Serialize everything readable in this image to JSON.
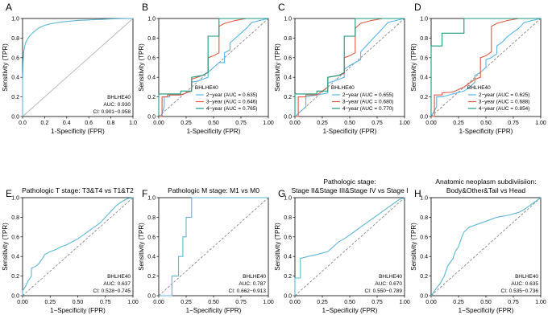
{
  "chart_data": [
    {
      "panel": "A",
      "type": "line",
      "title": "",
      "legend_title": "",
      "xlabel": "1-Specificity (FPR)",
      "ylabel": "Sensitivity (TPR)",
      "xlim": [
        0,
        1
      ],
      "ylim": [
        0,
        1
      ],
      "xticks": [
        "0.0",
        "0.2",
        "0.4",
        "0.6",
        "0.8",
        "1.0"
      ],
      "yticks": [
        "0.0",
        "0.2",
        "0.4",
        "0.6",
        "0.8",
        "1.0"
      ],
      "diagonal": "solid",
      "legend_position": "bottom-right",
      "annotations": [
        "BHLHE40",
        "AUC: 0.930",
        "CI: 0.901−0.958"
      ],
      "series": [
        {
          "name": "BHLHE40",
          "color": "#5fb8d4",
          "x": [
            0,
            0,
            0.005,
            0.01,
            0.02,
            0.03,
            0.05,
            0.07,
            0.1,
            0.13,
            0.16,
            0.2,
            0.25,
            0.3,
            0.35,
            0.4,
            0.5,
            0.6,
            0.7,
            0.8,
            0.9,
            1.0
          ],
          "y": [
            0,
            0.35,
            0.55,
            0.66,
            0.72,
            0.76,
            0.8,
            0.83,
            0.86,
            0.89,
            0.91,
            0.93,
            0.945,
            0.955,
            0.965,
            0.97,
            0.98,
            0.985,
            0.99,
            0.995,
            0.998,
            1.0
          ]
        }
      ]
    },
    {
      "panel": "B",
      "type": "line",
      "title": "",
      "legend_title": "BHLHE40",
      "xlabel": "1-Specificity (FPR)",
      "ylabel": "Sensitivity (TPR)",
      "xlim": [
        0,
        1
      ],
      "ylim": [
        0,
        1
      ],
      "xticks": [
        "0.00",
        "0.25",
        "0.50",
        "0.75",
        "1.00"
      ],
      "yticks": [
        "0.0",
        "0.2",
        "0.4",
        "0.6",
        "0.8",
        "1.0"
      ],
      "diagonal": "dashed",
      "legend_position": "bottom-right",
      "annotations": [],
      "series": [
        {
          "name": "2−year (AUC = 0.635)",
          "color": "#56b4e9",
          "x": [
            0,
            0.02,
            0.05,
            0.05,
            0.1,
            0.1,
            0.2,
            0.25,
            0.3,
            0.3,
            0.35,
            0.4,
            0.45,
            0.45,
            0.5,
            0.55,
            0.6,
            0.6,
            0.65,
            0.65,
            0.7,
            0.75,
            0.8,
            0.85,
            1.0
          ],
          "y": [
            0,
            0,
            0.1,
            0.2,
            0.2,
            0.22,
            0.22,
            0.24,
            0.26,
            0.35,
            0.36,
            0.38,
            0.4,
            0.45,
            0.5,
            0.55,
            0.55,
            0.65,
            0.68,
            0.75,
            0.8,
            0.85,
            0.9,
            0.96,
            1.0
          ]
        },
        {
          "name": "3−year (AUC = 0.646)",
          "color": "#e05a44",
          "x": [
            0,
            0.03,
            0.03,
            0.08,
            0.08,
            0.2,
            0.3,
            0.3,
            0.35,
            0.4,
            0.45,
            0.45,
            0.5,
            0.55,
            0.55,
            0.6,
            0.7,
            0.8,
            0.9,
            1.0
          ],
          "y": [
            0,
            0,
            0.2,
            0.2,
            0.22,
            0.22,
            0.26,
            0.38,
            0.4,
            0.42,
            0.45,
            0.6,
            0.62,
            0.65,
            0.92,
            0.95,
            0.98,
            1.0,
            1.0,
            1.0
          ]
        },
        {
          "name": "4−year (AUC = 0.765)",
          "color": "#1a9a7f",
          "x": [
            0,
            0,
            0.1,
            0.2,
            0.2,
            0.3,
            0.3,
            0.4,
            0.45,
            0.45,
            0.55,
            0.55,
            1.0
          ],
          "y": [
            0,
            0.23,
            0.23,
            0.23,
            0.26,
            0.26,
            0.4,
            0.42,
            0.45,
            0.82,
            0.82,
            1.0,
            1.0
          ]
        }
      ]
    },
    {
      "panel": "C",
      "type": "line",
      "title": "",
      "legend_title": "BHLHE40",
      "xlabel": "1-Specificity (FPR)",
      "ylabel": "Sensitivity (TPR)",
      "xlim": [
        0,
        1
      ],
      "ylim": [
        0,
        1
      ],
      "xticks": [
        "0.00",
        "0.25",
        "0.50",
        "0.75",
        "1.00"
      ],
      "yticks": [
        "0.0",
        "0.2",
        "0.4",
        "0.6",
        "0.8",
        "1.0"
      ],
      "diagonal": "dashed",
      "legend_position": "bottom-right",
      "annotations": [],
      "series": [
        {
          "name": "2−year (AUC = 0.655)",
          "color": "#56b4e9",
          "x": [
            0,
            0.05,
            0.1,
            0.1,
            0.2,
            0.3,
            0.3,
            0.35,
            0.4,
            0.45,
            0.45,
            0.5,
            0.55,
            0.6,
            0.6,
            0.65,
            0.7,
            0.75,
            0.8,
            0.85,
            1.0
          ],
          "y": [
            0,
            0.05,
            0.1,
            0.2,
            0.22,
            0.24,
            0.34,
            0.36,
            0.38,
            0.4,
            0.48,
            0.52,
            0.55,
            0.58,
            0.66,
            0.72,
            0.78,
            0.84,
            0.9,
            0.96,
            1.0
          ]
        },
        {
          "name": "3−year (AUC = 0.680)",
          "color": "#e05a44",
          "x": [
            0,
            0.03,
            0.03,
            0.1,
            0.1,
            0.2,
            0.3,
            0.3,
            0.4,
            0.45,
            0.45,
            0.5,
            0.55,
            0.55,
            0.6,
            0.7,
            0.8,
            1.0
          ],
          "y": [
            0,
            0,
            0.2,
            0.2,
            0.22,
            0.22,
            0.3,
            0.4,
            0.42,
            0.44,
            0.6,
            0.62,
            0.65,
            0.9,
            0.95,
            0.98,
            1.0,
            1.0
          ]
        },
        {
          "name": "4−year (AUC = 0.770)",
          "color": "#1a9a7f",
          "x": [
            0,
            0,
            0.1,
            0.2,
            0.2,
            0.3,
            0.3,
            0.4,
            0.45,
            0.45,
            0.55,
            0.55,
            1.0
          ],
          "y": [
            0,
            0.23,
            0.23,
            0.23,
            0.26,
            0.26,
            0.4,
            0.42,
            0.45,
            0.82,
            0.82,
            1.0,
            1.0
          ]
        }
      ]
    },
    {
      "panel": "D",
      "type": "line",
      "title": "",
      "legend_title": "BHLHE40",
      "xlabel": "1-Specificity (FPR)",
      "ylabel": "Sensitivity (TPR)",
      "xlim": [
        0,
        1
      ],
      "ylim": [
        0,
        1
      ],
      "xticks": [
        "0.00",
        "0.25",
        "0.50",
        "0.75",
        "1.00"
      ],
      "yticks": [
        "0.0",
        "0.2",
        "0.4",
        "0.6",
        "0.8",
        "1.0"
      ],
      "diagonal": "dashed",
      "legend_position": "bottom-right",
      "annotations": [],
      "series": [
        {
          "name": "2−year (AUC = 0.625)",
          "color": "#56b4e9",
          "x": [
            0,
            0.05,
            0.05,
            0.1,
            0.2,
            0.3,
            0.35,
            0.4,
            0.4,
            0.45,
            0.5,
            0.5,
            0.55,
            0.6,
            0.6,
            0.65,
            0.7,
            0.75,
            0.8,
            0.85,
            1.0
          ],
          "y": [
            0,
            0.1,
            0.2,
            0.2,
            0.23,
            0.26,
            0.3,
            0.35,
            0.42,
            0.45,
            0.5,
            0.58,
            0.6,
            0.64,
            0.72,
            0.76,
            0.82,
            0.86,
            0.9,
            0.96,
            1.0
          ]
        },
        {
          "name": "3−year (AUC = 0.688)",
          "color": "#e05a44",
          "x": [
            0,
            0.03,
            0.03,
            0.1,
            0.1,
            0.2,
            0.3,
            0.35,
            0.4,
            0.45,
            0.45,
            0.5,
            0.55,
            0.55,
            0.6,
            0.7,
            0.8,
            1.0
          ],
          "y": [
            0,
            0,
            0.22,
            0.22,
            0.24,
            0.25,
            0.3,
            0.34,
            0.38,
            0.4,
            0.6,
            0.62,
            0.66,
            0.92,
            0.95,
            0.98,
            1.0,
            1.0
          ]
        },
        {
          "name": "4−year (AUC = 0.854)",
          "color": "#1a9a7f",
          "x": [
            0,
            0,
            0.1,
            0.1,
            0.3,
            0.3,
            0.5,
            1.0
          ],
          "y": [
            0,
            0.72,
            0.72,
            0.85,
            0.85,
            1.0,
            1.0,
            1.0
          ]
        }
      ]
    },
    {
      "panel": "E",
      "type": "line",
      "title": "Pathologic T stage: T3&T4 vs T1&T2",
      "legend_title": "",
      "xlabel": "1−Specificity (FPR)",
      "ylabel": "Sensitivity (TPR)",
      "xlim": [
        0,
        1
      ],
      "ylim": [
        0,
        1
      ],
      "xticks": [
        "0.00",
        "0.25",
        "0.50",
        "0.75",
        "1.00"
      ],
      "yticks": [
        "0.0",
        "0.2",
        "0.4",
        "0.6",
        "0.8",
        "1.0"
      ],
      "diagonal": "dashed",
      "legend_position": "bottom-right",
      "annotations": [
        "BHLHE40",
        "AUC: 0.637",
        "CI: 0.528−0.745"
      ],
      "series": [
        {
          "name": "BHLHE40",
          "color": "#5fb8d4",
          "x": [
            0,
            0,
            0.03,
            0.05,
            0.08,
            0.08,
            0.12,
            0.15,
            0.18,
            0.2,
            0.25,
            0.3,
            0.35,
            0.4,
            0.45,
            0.5,
            0.55,
            0.6,
            0.65,
            0.7,
            0.75,
            0.8,
            0.85,
            0.9,
            0.95,
            1.0
          ],
          "y": [
            0,
            0.05,
            0.1,
            0.15,
            0.2,
            0.28,
            0.3,
            0.33,
            0.38,
            0.42,
            0.45,
            0.47,
            0.5,
            0.52,
            0.55,
            0.58,
            0.62,
            0.66,
            0.7,
            0.74,
            0.8,
            0.86,
            0.92,
            0.96,
            0.99,
            1.0
          ]
        }
      ]
    },
    {
      "panel": "F",
      "type": "line",
      "title": "Pathologic M stage: M1 vs M0",
      "legend_title": "",
      "xlabel": "1−Specificity (FPR)",
      "ylabel": "Sensitivity (TPR)",
      "xlim": [
        0,
        1
      ],
      "ylim": [
        0,
        1
      ],
      "xticks": [
        "0.00",
        "0.25",
        "0.50",
        "0.75",
        "1.00"
      ],
      "yticks": [
        "0.0",
        "0.2",
        "0.4",
        "0.6",
        "0.8",
        "1.0"
      ],
      "diagonal": "dashed",
      "legend_position": "bottom-right",
      "annotations": [
        "BHLHE40",
        "AUC: 0.787",
        "CI: 0.662−0.913"
      ],
      "series": [
        {
          "name": "BHLHE40",
          "color": "#5fb8d4",
          "x": [
            0,
            0.12,
            0.12,
            0.18,
            0.18,
            0.22,
            0.22,
            0.25,
            0.25,
            0.3,
            0.3,
            0.35,
            0.35,
            1.0
          ],
          "y": [
            0,
            0,
            0.2,
            0.2,
            0.4,
            0.4,
            0.6,
            0.6,
            0.8,
            0.8,
            1.0,
            1.0,
            1.0,
            1.0
          ]
        }
      ]
    },
    {
      "panel": "G",
      "type": "line",
      "title": "Pathologic stage:\nStage II&Stage III&Stage IV vs Stage I",
      "legend_title": "",
      "xlabel": "1−Specificity (FPR)",
      "ylabel": "Sensitivity (TPR)",
      "xlim": [
        0,
        1
      ],
      "ylim": [
        0,
        1
      ],
      "xticks": [
        "0.00",
        "0.25",
        "0.50",
        "0.75",
        "1.00"
      ],
      "yticks": [
        "0.0",
        "0.2",
        "0.4",
        "0.6",
        "0.8",
        "1.0"
      ],
      "diagonal": "dashed",
      "legend_position": "bottom-right",
      "annotations": [
        "BHLHE40",
        "AUC: 0.670",
        "CI: 0.550−0.789"
      ],
      "series": [
        {
          "name": "BHLHE40",
          "color": "#5fb8d4",
          "x": [
            0,
            0,
            0.05,
            0.05,
            0.12,
            0.2,
            0.3,
            0.35,
            0.4,
            0.45,
            0.5,
            0.55,
            0.6,
            0.65,
            0.7,
            0.75,
            0.8,
            0.85,
            0.9,
            0.95,
            1.0
          ],
          "y": [
            0,
            0.18,
            0.18,
            0.38,
            0.4,
            0.42,
            0.45,
            0.5,
            0.55,
            0.58,
            0.62,
            0.66,
            0.7,
            0.74,
            0.78,
            0.82,
            0.86,
            0.9,
            0.94,
            0.98,
            1.0
          ]
        }
      ]
    },
    {
      "panel": "H",
      "type": "line",
      "title": "Anatomic neoplasm subdiviisiion:\nBody&Other&Tail vs Head",
      "legend_title": "",
      "xlabel": "1−Specificity (FPR)",
      "ylabel": "Sensitivity (TPR)",
      "xlim": [
        0,
        1
      ],
      "ylim": [
        0,
        1
      ],
      "xticks": [
        "0.00",
        "0.25",
        "0.50",
        "0.75",
        "1.00"
      ],
      "yticks": [
        "0.0",
        "0.2",
        "0.4",
        "0.6",
        "0.8",
        "1.0"
      ],
      "diagonal": "dashed",
      "legend_position": "bottom-right",
      "annotations": [
        "BHLHE40",
        "AUC: 0.635",
        "CI: 0.535−0.736"
      ],
      "series": [
        {
          "name": "BHLHE40",
          "color": "#5fb8d4",
          "x": [
            0,
            0.02,
            0.05,
            0.08,
            0.12,
            0.15,
            0.2,
            0.22,
            0.25,
            0.28,
            0.3,
            0.35,
            0.4,
            0.45,
            0.5,
            0.55,
            0.6,
            0.7,
            0.8,
            0.85,
            0.9,
            1.0
          ],
          "y": [
            0,
            0.03,
            0.08,
            0.12,
            0.2,
            0.3,
            0.38,
            0.45,
            0.5,
            0.6,
            0.65,
            0.7,
            0.72,
            0.74,
            0.76,
            0.78,
            0.8,
            0.82,
            0.85,
            0.88,
            0.92,
            1.0
          ]
        }
      ]
    }
  ]
}
